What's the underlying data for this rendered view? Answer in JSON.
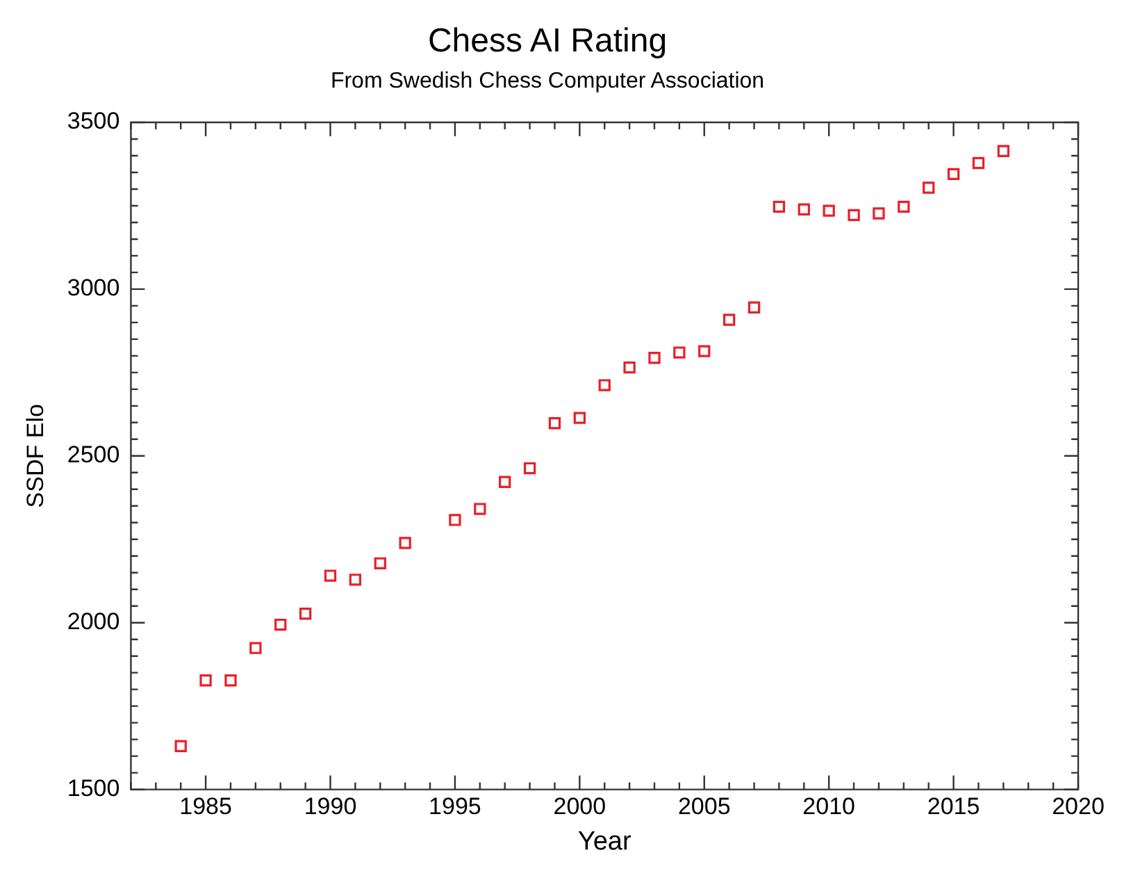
{
  "chart_data": {
    "type": "scatter",
    "title": "Chess AI Rating",
    "subtitle": "From Swedish Chess Computer Association",
    "xlabel": "Year",
    "ylabel": "SSDF Elo",
    "x": [
      1984,
      1985,
      1986,
      1987,
      1988,
      1989,
      1990,
      1991,
      1992,
      1993,
      1995,
      1996,
      1997,
      1998,
      1999,
      2000,
      2001,
      2002,
      2003,
      2004,
      2005,
      2006,
      2007,
      2008,
      2009,
      2010,
      2011,
      2012,
      2013,
      2014,
      2015,
      2016,
      2017
    ],
    "series": [
      {
        "color": "#e8202a",
        "values": [
          1630,
          1827,
          1827,
          1924,
          1994,
          2027,
          2141,
          2129,
          2178,
          2239,
          2308,
          2341,
          2422,
          2463,
          2598,
          2614,
          2712,
          2765,
          2794,
          2810,
          2814,
          2908,
          2945,
          3247,
          3239,
          3235,
          3222,
          3227,
          3247,
          3304,
          3345,
          3378,
          3414
        ]
      }
    ],
    "marker": "square",
    "legend": false,
    "grid": false,
    "xlim": [
      1982,
      2020
    ],
    "xticks": [
      {
        "value": 1982,
        "label": null
      },
      {
        "value": 1983,
        "label": null
      },
      {
        "value": 1984,
        "label": null
      },
      1985,
      {
        "value": 1986,
        "label": null
      },
      {
        "value": 1987,
        "label": null
      },
      {
        "value": 1988,
        "label": null
      },
      {
        "value": 1989,
        "label": null
      },
      1990,
      {
        "value": 1991,
        "label": null
      },
      {
        "value": 1992,
        "label": null
      },
      {
        "value": 1993,
        "label": null
      },
      {
        "value": 1994,
        "label": null
      },
      1995,
      {
        "value": 1996,
        "label": null
      },
      {
        "value": 1997,
        "label": null
      },
      {
        "value": 1998,
        "label": null
      },
      {
        "value": 1999,
        "label": null
      },
      2000,
      {
        "value": 2001,
        "label": null
      },
      {
        "value": 2002,
        "label": null
      },
      {
        "value": 2003,
        "label": null
      },
      {
        "value": 2004,
        "label": null
      },
      2005,
      {
        "value": 2006,
        "label": null
      },
      {
        "value": 2007,
        "label": null
      },
      {
        "value": 2008,
        "label": null
      },
      {
        "value": 2009,
        "label": null
      },
      2010,
      {
        "value": 2011,
        "label": null
      },
      {
        "value": 2012,
        "label": null
      },
      {
        "value": 2013,
        "label": null
      },
      {
        "value": 2014,
        "label": null
      },
      2015,
      {
        "value": 2016,
        "label": null
      },
      {
        "value": 2017,
        "label": null
      },
      {
        "value": 2018,
        "label": null
      },
      {
        "value": 2019,
        "label": null
      },
      2020
    ],
    "ylim": [
      1500,
      3500
    ],
    "yticks": [
      1500,
      {
        "value": 1550,
        "label": null
      },
      {
        "value": 1600,
        "label": null
      },
      {
        "value": 1650,
        "label": null
      },
      {
        "value": 1700,
        "label": null
      },
      {
        "value": 1750,
        "label": null
      },
      {
        "value": 1800,
        "label": null
      },
      {
        "value": 1850,
        "label": null
      },
      {
        "value": 1900,
        "label": null
      },
      {
        "value": 1950,
        "label": null
      },
      2000,
      {
        "value": 2050,
        "label": null
      },
      {
        "value": 2100,
        "label": null
      },
      {
        "value": 2150,
        "label": null
      },
      {
        "value": 2200,
        "label": null
      },
      {
        "value": 2250,
        "label": null
      },
      {
        "value": 2300,
        "label": null
      },
      {
        "value": 2350,
        "label": null
      },
      {
        "value": 2400,
        "label": null
      },
      {
        "value": 2450,
        "label": null
      },
      2500,
      {
        "value": 2550,
        "label": null
      },
      {
        "value": 2600,
        "label": null
      },
      {
        "value": 2650,
        "label": null
      },
      {
        "value": 2700,
        "label": null
      },
      {
        "value": 2750,
        "label": null
      },
      {
        "value": 2800,
        "label": null
      },
      {
        "value": 2850,
        "label": null
      },
      {
        "value": 2900,
        "label": null
      },
      {
        "value": 2950,
        "label": null
      },
      3000,
      {
        "value": 3050,
        "label": null
      },
      {
        "value": 3100,
        "label": null
      },
      {
        "value": 3150,
        "label": null
      },
      {
        "value": 3200,
        "label": null
      },
      {
        "value": 3250,
        "label": null
      },
      {
        "value": 3300,
        "label": null
      },
      {
        "value": 3350,
        "label": null
      },
      {
        "value": 3400,
        "label": null
      },
      {
        "value": 3450,
        "label": null
      },
      3500
    ]
  }
}
